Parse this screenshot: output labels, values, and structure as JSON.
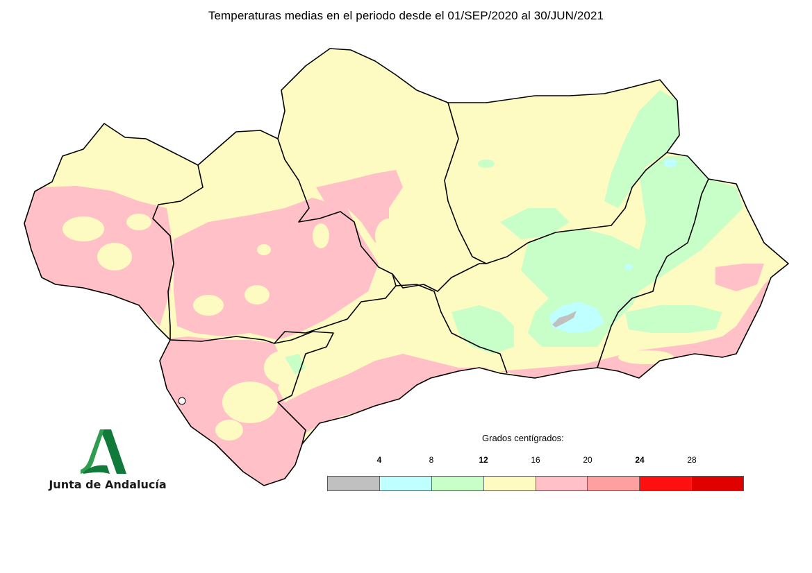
{
  "title": "Temperaturas medias en el periodo desde el 01/SEP/2020 al 30/JUN/2021",
  "logo_text": "Junta de Andalucía",
  "legend": {
    "title": "Grados centígrados:",
    "ticks": [
      {
        "label": "4",
        "bold": true
      },
      {
        "label": "8",
        "bold": false
      },
      {
        "label": "12",
        "bold": true
      },
      {
        "label": "16",
        "bold": false
      },
      {
        "label": "20",
        "bold": false
      },
      {
        "label": "24",
        "bold": true
      },
      {
        "label": "28",
        "bold": false
      }
    ],
    "colors": [
      "#c0c0c0",
      "#bfffff",
      "#c8ffc8",
      "#fdfac2",
      "#ffc0c8",
      "#ffa0a0",
      "#ff1010",
      "#e00000"
    ]
  },
  "map_colors": {
    "background_zone": "#fdfac2",
    "warm_zone": "#ffc0c8",
    "cool_zone": "#c8ffc8",
    "cold_zone": "#bfffff",
    "coldest_zone": "#c0c0c0",
    "border": "#000000"
  }
}
